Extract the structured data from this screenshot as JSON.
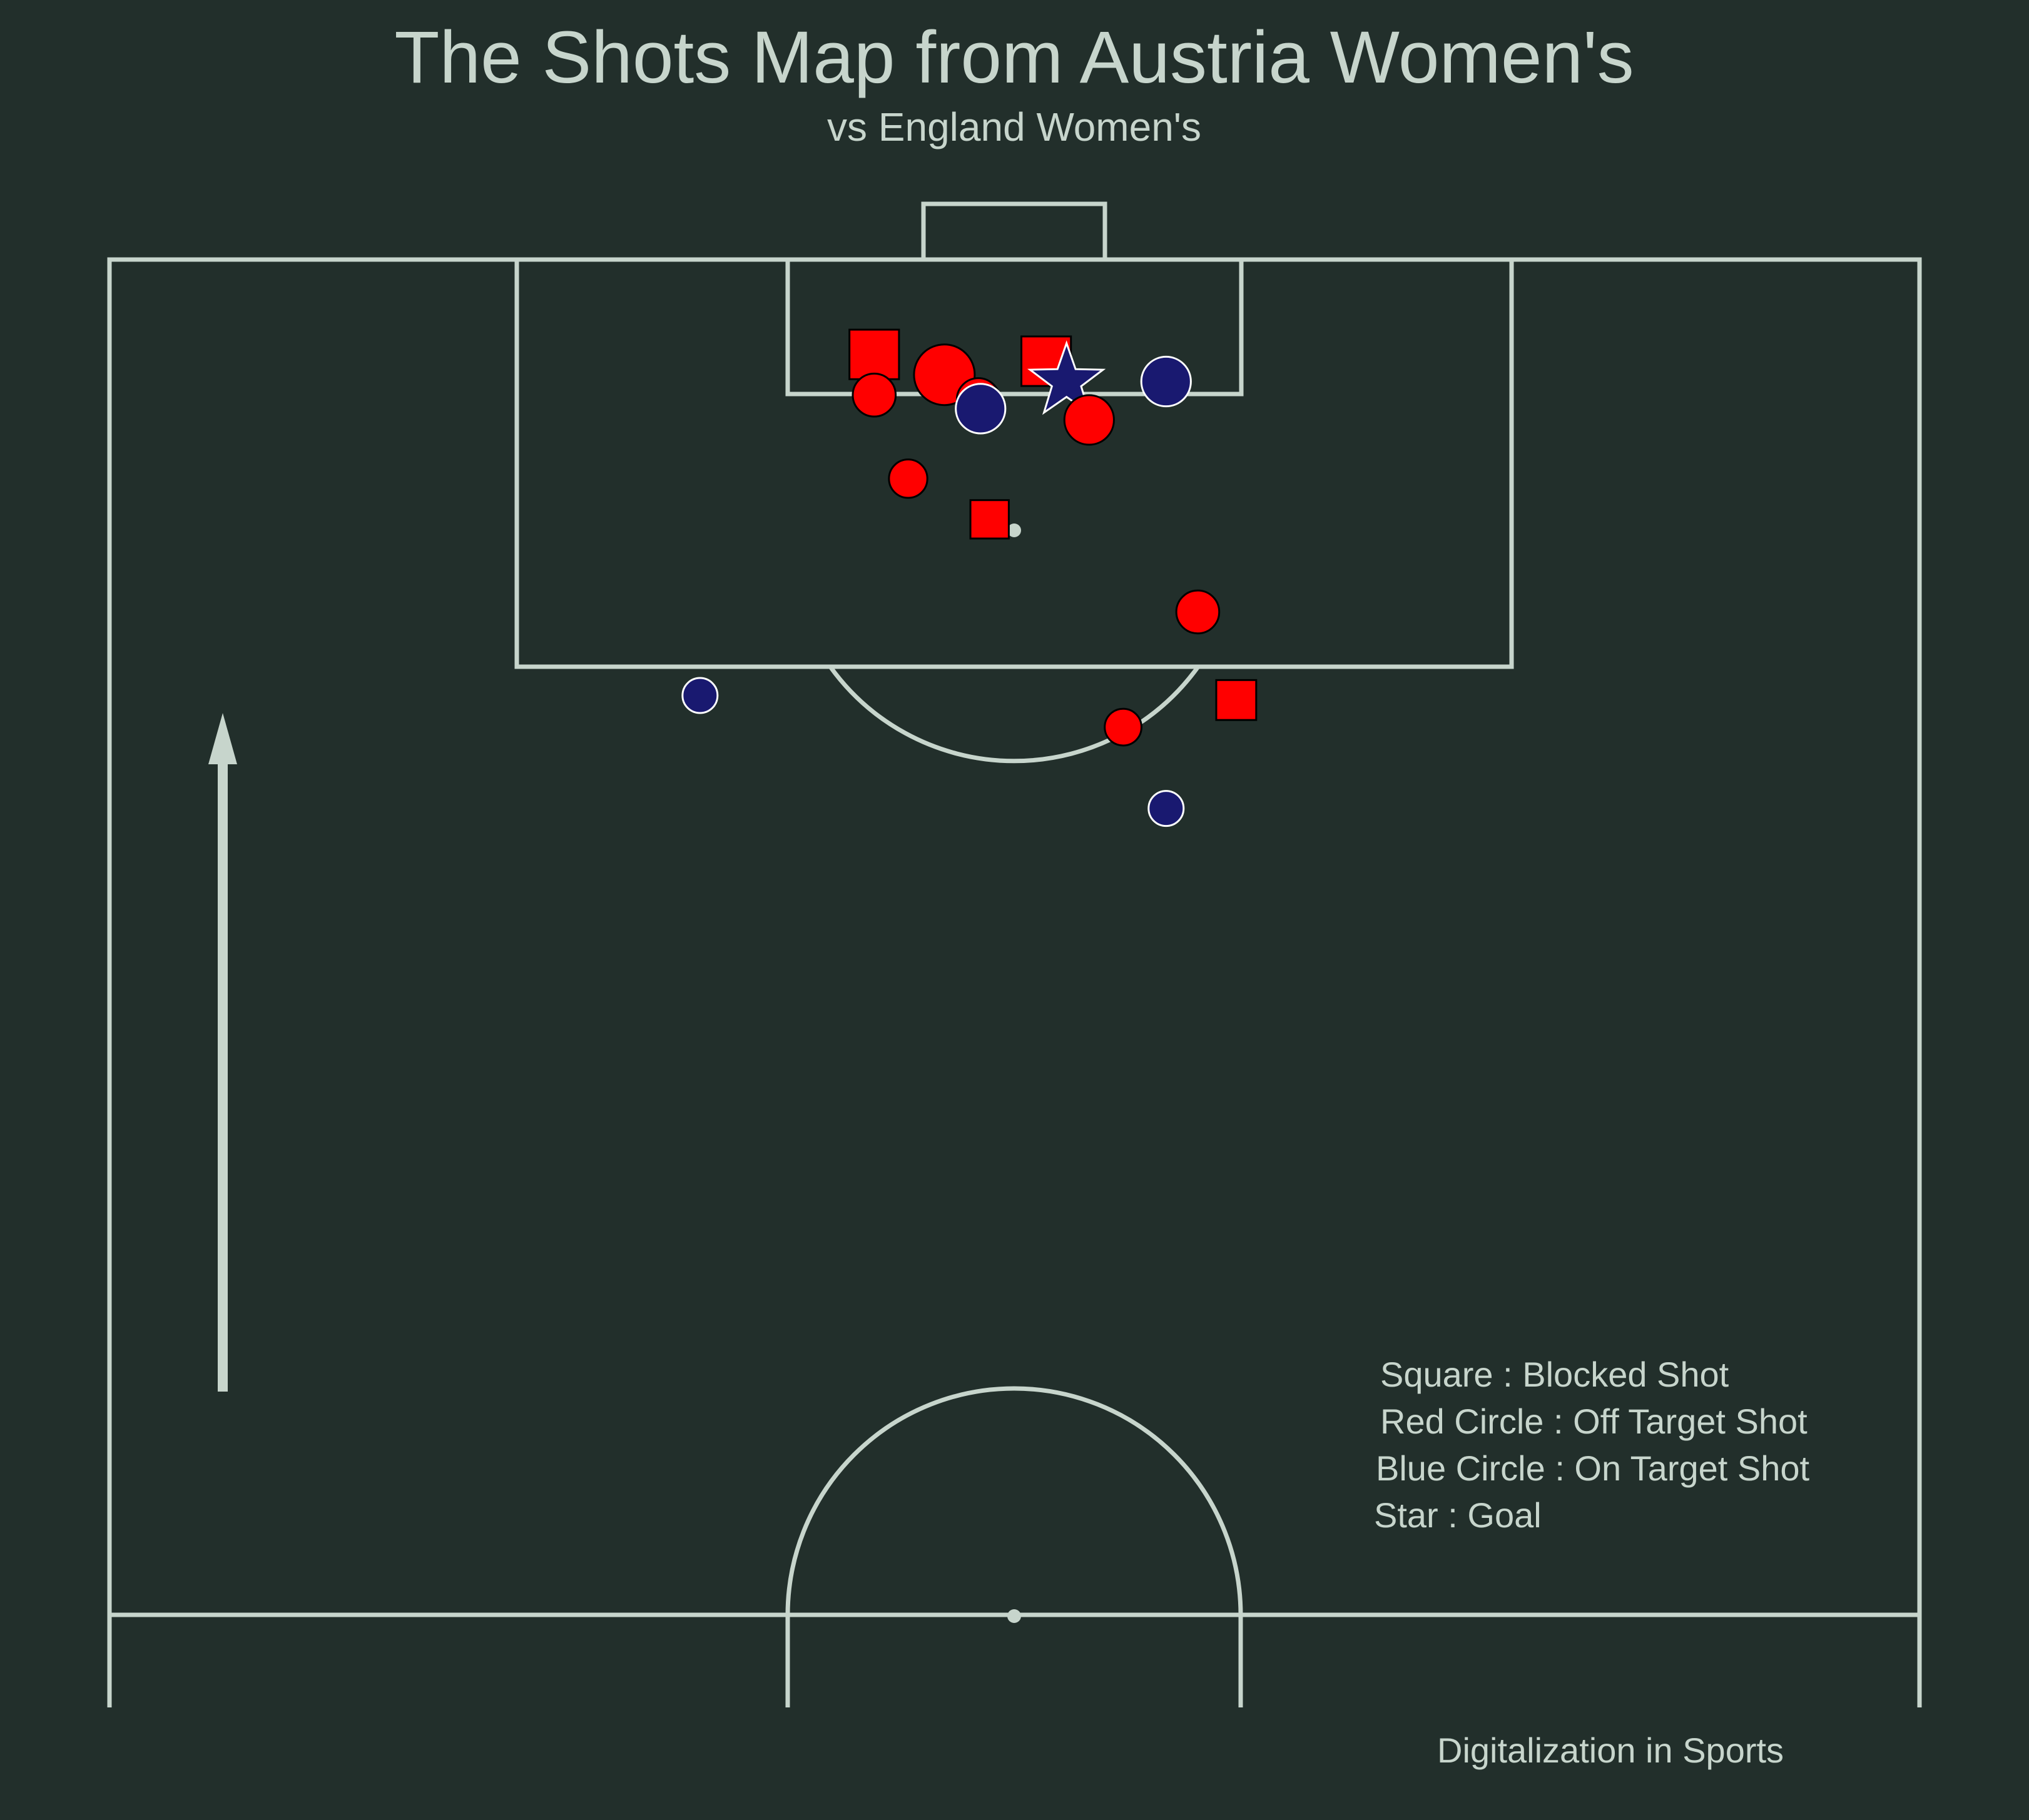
{
  "colors": {
    "background": "#222f2b",
    "lines": "#c7d5cc",
    "off_target": "#ff0000",
    "on_target": "#191970",
    "goal": "#191970",
    "blocked": "#ff0000"
  },
  "chart_data": {
    "type": "scatter",
    "title": "The Shots Map from Austria Women's",
    "subtitle": "vs England Women's",
    "credit": "Digitalization in Sports",
    "pitch": "half-pitch (vertical, attacking upward)",
    "direction_arrow": "up",
    "xlim": [
      0,
      80
    ],
    "ylim": [
      60,
      120
    ],
    "legend": {
      "placement": "bottom-right",
      "entries": [
        "Square : Blocked Shot",
        "Red Circle : Off Target Shot",
        "Blue Circle : On Target Shot",
        "Star : Goal"
      ]
    },
    "shots": [
      {
        "x": 33.8,
        "y": 115.8,
        "outcome": "Blocked",
        "size": 2
      },
      {
        "x": 36.9,
        "y": 114.9,
        "outcome": "Off T",
        "size": 3
      },
      {
        "x": 33.8,
        "y": 114.0,
        "outcome": "Off T",
        "size": 1.5
      },
      {
        "x": 38.4,
        "y": 113.8,
        "outcome": "Off T",
        "size": 1.5
      },
      {
        "x": 38.5,
        "y": 113.4,
        "outcome": "Saved",
        "size": 2
      },
      {
        "x": 41.4,
        "y": 115.5,
        "outcome": "Blocked",
        "size": 2
      },
      {
        "x": 42.3,
        "y": 114.6,
        "outcome": "Goal",
        "size": 2
      },
      {
        "x": 46.7,
        "y": 114.6,
        "outcome": "Saved",
        "size": 2
      },
      {
        "x": 43.3,
        "y": 112.9,
        "outcome": "Off T",
        "size": 2
      },
      {
        "x": 35.3,
        "y": 110.3,
        "outcome": "Off T",
        "size": 1.2
      },
      {
        "x": 38.9,
        "y": 108.5,
        "outcome": "Blocked",
        "size": 1.2
      },
      {
        "x": 48.1,
        "y": 104.4,
        "outcome": "Off T",
        "size": 1.5
      },
      {
        "x": 26.1,
        "y": 100.7,
        "outcome": "Saved",
        "size": 1
      },
      {
        "x": 49.8,
        "y": 100.5,
        "outcome": "Blocked",
        "size": 1.3
      },
      {
        "x": 44.8,
        "y": 99.3,
        "outcome": "Off T",
        "size": 1.1
      },
      {
        "x": 46.7,
        "y": 95.7,
        "outcome": "Saved",
        "size": 1
      }
    ]
  }
}
